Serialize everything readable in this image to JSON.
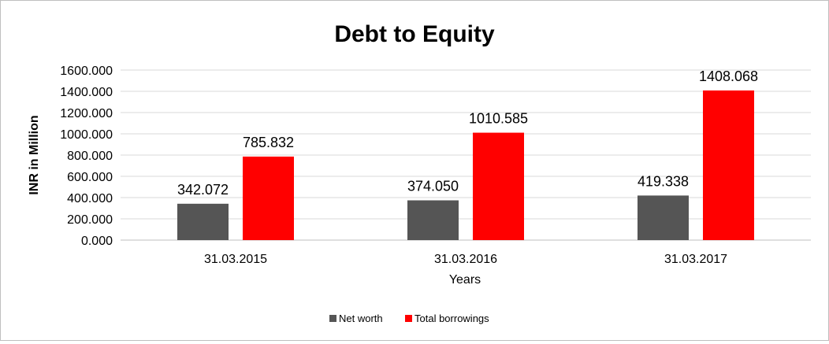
{
  "chart_data": {
    "type": "bar",
    "title": "Debt to Equity",
    "xlabel": "Years",
    "ylabel": "INR in Million",
    "categories": [
      "31.03.2015",
      "31.03.2016",
      "31.03.2017"
    ],
    "series": [
      {
        "name": "Net worth",
        "color": "#555555",
        "values": [
          342.072,
          374.05,
          419.338
        ],
        "labels": [
          "342.072",
          "374.050",
          "419.338"
        ]
      },
      {
        "name": "Total borrowings",
        "color": "#ff0000",
        "values": [
          785.832,
          1010.585,
          1408.068
        ],
        "labels": [
          "785.832",
          "1010.585",
          "1408.068"
        ]
      }
    ],
    "ylim": [
      0,
      1600
    ],
    "yticks": [
      "0.000",
      "200.000",
      "400.000",
      "600.000",
      "800.000",
      "1000.000",
      "1200.000",
      "1400.000",
      "1600.000"
    ],
    "grid": true,
    "legend_position": "bottom"
  }
}
